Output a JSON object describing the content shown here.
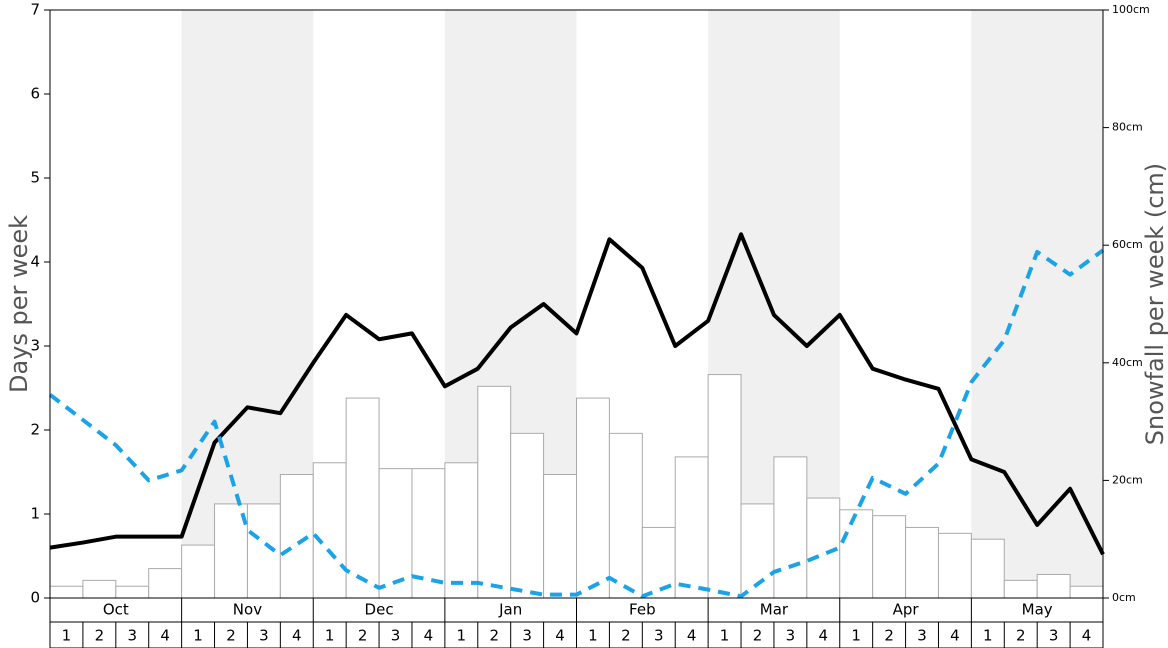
{
  "chart_data": {
    "type": "bar",
    "y_label": "Days per week",
    "y2_label": "Snowfall per week (cm)",
    "months": [
      "Oct",
      "Nov",
      "Dec",
      "Jan",
      "Feb",
      "Mar",
      "Apr",
      "May"
    ],
    "categories": [
      "1",
      "2",
      "3",
      "4",
      "1",
      "2",
      "3",
      "4",
      "1",
      "2",
      "3",
      "4",
      "1",
      "2",
      "3",
      "4",
      "1",
      "2",
      "3",
      "4",
      "1",
      "2",
      "3",
      "4",
      "1",
      "2",
      "3",
      "4",
      "1",
      "2",
      "3",
      "4"
    ],
    "ylim": [
      0,
      7
    ],
    "yticks": [
      0,
      1,
      2,
      3,
      4,
      5,
      6,
      7
    ],
    "y2lim": [
      0,
      100
    ],
    "y2ticks": [
      {
        "value": 0,
        "label": "0cm"
      },
      {
        "value": 20,
        "label": "20cm"
      },
      {
        "value": 40,
        "label": "40cm"
      },
      {
        "value": 60,
        "label": "60cm"
      },
      {
        "value": 80,
        "label": "80cm"
      },
      {
        "value": 100,
        "label": "100cm"
      }
    ],
    "bar_series": {
      "axis": "y2",
      "color": "#ffffff",
      "values": [
        2,
        3,
        2,
        5,
        9,
        16,
        16,
        21,
        23,
        34,
        22,
        22,
        23,
        36,
        28,
        21,
        34,
        28,
        12,
        24,
        38,
        16,
        24,
        17,
        15,
        14,
        12,
        11,
        10,
        3,
        4,
        2
      ]
    },
    "line_series": [
      {
        "color": "#000000",
        "dashed": false,
        "values": [
          0.6,
          0.66,
          0.73,
          0.73,
          0.73,
          1.85,
          2.27,
          2.2,
          2.8,
          3.37,
          3.08,
          3.15,
          2.52,
          2.73,
          3.22,
          3.5,
          3.15,
          4.27,
          3.93,
          3.0,
          3.3,
          4.33,
          3.37,
          3.0,
          3.37,
          2.73,
          2.6,
          2.49,
          1.65,
          1.5,
          0.87,
          1.3,
          0.52
        ]
      },
      {
        "color": "#1aa3e8",
        "dashed": true,
        "values": [
          2.42,
          2.12,
          1.82,
          1.4,
          1.52,
          2.1,
          0.81,
          0.51,
          0.77,
          0.33,
          0.12,
          0.26,
          0.18,
          0.18,
          0.11,
          0.04,
          0.04,
          0.24,
          0.02,
          0.17,
          0.1,
          0.02,
          0.31,
          0.44,
          0.6,
          1.43,
          1.24,
          1.6,
          2.57,
          3.07,
          4.12,
          3.85,
          4.14
        ]
      }
    ]
  }
}
